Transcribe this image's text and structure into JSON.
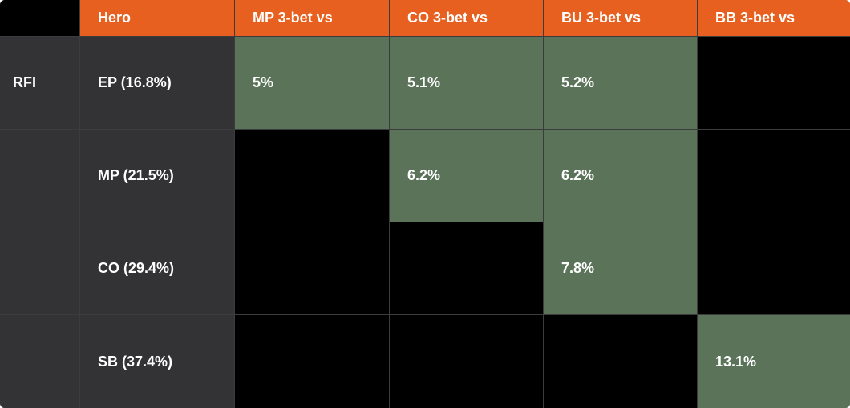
{
  "header": {
    "columns": [
      "Hero",
      "MP 3-bet vs",
      "CO 3-bet vs",
      "BU 3-bet vs",
      "BB 3-bet vs"
    ]
  },
  "rows": [
    {
      "label": "RFI",
      "hero": "EP (16.8%)",
      "cells": [
        "5%",
        "5.1%",
        "5.2%",
        null
      ]
    },
    {
      "hero": "MP (21.5%)",
      "cells": [
        null,
        "6.2%",
        "6.2%",
        null
      ]
    },
    {
      "hero": "CO (29.4%)",
      "cells": [
        null,
        null,
        "7.8%",
        null
      ]
    },
    {
      "hero": "SB (37.4%)",
      "cells": [
        null,
        null,
        null,
        "13.1%"
      ]
    }
  ]
}
